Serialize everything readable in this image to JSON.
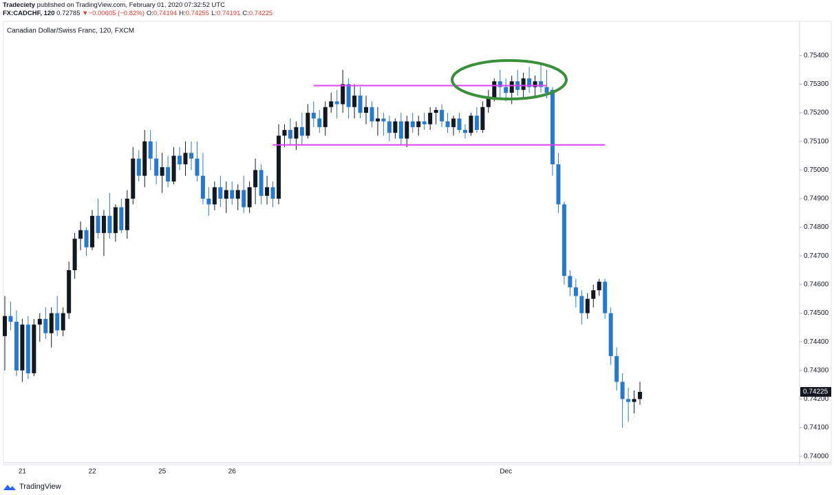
{
  "header": {
    "publisher": "Tradeciety",
    "published": "published on TradingView.com, February 01, 2020 07:32:52 UTC",
    "symbol": "FX:CADCHF, 120",
    "price": "0.72785",
    "arrow": "▼",
    "change": "−0.00605 (−0.82%)",
    "ohlc": [
      {
        "label": "O:",
        "value": "0.74194"
      },
      {
        "label": "H:",
        "value": "0.74255"
      },
      {
        "label": "L:",
        "value": "0.74191"
      },
      {
        "label": "C:",
        "value": "0.74225"
      }
    ]
  },
  "footer": {
    "brand": "TradingView"
  },
  "chart_data": {
    "type": "candlestick",
    "title": "Canadian Dollar/Swiss Franc, 120, FXCM",
    "up_color": "#131722",
    "down_color": "#2679d0",
    "ylim": [
      0.7398,
      0.7551
    ],
    "yticks": [
      {
        "value": 0.74,
        "label": "0.74000"
      },
      {
        "value": 0.741,
        "label": "0.74100"
      },
      {
        "value": 0.742,
        "label": "0.74200"
      },
      {
        "value": 0.743,
        "label": "0.74300"
      },
      {
        "value": 0.744,
        "label": "0.74400"
      },
      {
        "value": 0.745,
        "label": "0.74500"
      },
      {
        "value": 0.746,
        "label": "0.74600"
      },
      {
        "value": 0.747,
        "label": "0.74700"
      },
      {
        "value": 0.748,
        "label": "0.74800"
      },
      {
        "value": 0.749,
        "label": "0.74900"
      },
      {
        "value": 0.75,
        "label": "0.75000"
      },
      {
        "value": 0.751,
        "label": "0.75100"
      },
      {
        "value": 0.752,
        "label": "0.75200"
      },
      {
        "value": 0.753,
        "label": "0.75300"
      },
      {
        "value": 0.754,
        "label": "0.75400"
      }
    ],
    "last_price": {
      "value": 0.74225,
      "label": "0.74225"
    },
    "levels": [
      {
        "value": 0.75295,
        "from": 53,
        "to": 93
      },
      {
        "value": 0.75088,
        "from": 46,
        "to": 103
      }
    ],
    "level_color": "#e040fb",
    "categories": [
      null,
      null,
      null,
      "21",
      null,
      null,
      null,
      null,
      null,
      null,
      null,
      null,
      null,
      null,
      null,
      "22",
      null,
      null,
      null,
      null,
      null,
      null,
      null,
      null,
      null,
      null,
      null,
      "25",
      null,
      null,
      null,
      null,
      null,
      null,
      null,
      null,
      null,
      null,
      null,
      "26",
      null,
      null,
      null,
      null,
      null,
      null,
      null,
      null,
      null,
      null,
      null,
      null,
      null,
      null,
      null,
      null,
      null,
      null,
      null,
      null,
      null,
      null,
      null,
      null,
      null,
      null,
      null,
      null,
      null,
      null,
      null,
      null,
      null,
      null,
      null,
      null,
      null,
      null,
      null,
      null,
      null,
      null,
      null,
      null,
      null,
      null,
      "Dec",
      null,
      null,
      null,
      null,
      null,
      null,
      null,
      null,
      null,
      null,
      null,
      null,
      null,
      null,
      null,
      null,
      null,
      null,
      null,
      null,
      null,
      null,
      null
    ],
    "open": [
      0.7442,
      0.7449,
      0.7447,
      0.743,
      0.7446,
      0.7429,
      0.7446,
      0.7448,
      0.7443,
      0.745,
      0.7444,
      0.745,
      0.7465,
      0.7476,
      0.7479,
      0.7473,
      0.7484,
      0.7478,
      0.7484,
      0.7478,
      0.7487,
      0.7479,
      0.749,
      0.7504,
      0.7498,
      0.751,
      0.7504,
      0.7498,
      0.7501,
      0.7496,
      0.7505,
      0.7502,
      0.7506,
      0.7504,
      0.7498,
      0.749,
      0.7488,
      0.7494,
      0.749,
      0.7493,
      0.749,
      0.7493,
      0.7487,
      0.7494,
      0.75,
      0.7491,
      0.7494,
      0.749,
      0.7512,
      0.7514,
      0.7511,
      0.7515,
      0.7512,
      0.752,
      0.7518,
      0.7515,
      0.7522,
      0.7524,
      0.7523,
      0.753,
      0.7522,
      0.7526,
      0.752,
      0.7522,
      0.7517,
      0.7518,
      0.7517,
      0.7513,
      0.7517,
      0.7511,
      0.7517,
      0.7515,
      0.7517,
      0.7516,
      0.752,
      0.7521,
      0.7517,
      0.7515,
      0.7518,
      0.7514,
      0.7513,
      0.7519,
      0.7514,
      0.7522,
      0.7525,
      0.7531,
      0.7529,
      0.7527,
      0.7531,
      0.7528,
      0.7532,
      0.7529,
      0.7531,
      0.7529,
      0.7528,
      0.7502,
      0.7488,
      0.7463,
      0.7459,
      0.7456,
      0.745,
      0.7455,
      0.7458,
      0.7461,
      0.745,
      0.7435,
      0.7426,
      0.742,
      0.7419,
      0.742
    ],
    "high": [
      0.7456,
      0.7454,
      0.7451,
      0.7448,
      0.7449,
      0.7448,
      0.745,
      0.7452,
      0.7452,
      0.7456,
      0.7452,
      0.7468,
      0.7478,
      0.7482,
      0.748,
      0.7486,
      0.749,
      0.7486,
      0.7492,
      0.7488,
      0.749,
      0.7493,
      0.7508,
      0.7507,
      0.7514,
      0.7514,
      0.751,
      0.7506,
      0.7505,
      0.7508,
      0.7508,
      0.751,
      0.751,
      0.751,
      0.7506,
      0.7494,
      0.7496,
      0.7498,
      0.7496,
      0.7496,
      0.7495,
      0.7498,
      0.7496,
      0.7504,
      0.7502,
      0.7498,
      0.7496,
      0.7516,
      0.7516,
      0.7518,
      0.7517,
      0.752,
      0.7523,
      0.7524,
      0.7521,
      0.7524,
      0.7527,
      0.7528,
      0.7535,
      0.7532,
      0.753,
      0.7529,
      0.7526,
      0.7524,
      0.7522,
      0.752,
      0.7519,
      0.7518,
      0.752,
      0.7519,
      0.752,
      0.7519,
      0.752,
      0.7522,
      0.7522,
      0.7523,
      0.752,
      0.7519,
      0.752,
      0.7516,
      0.752,
      0.7522,
      0.7524,
      0.7528,
      0.7532,
      0.7535,
      0.7532,
      0.7533,
      0.7535,
      0.7534,
      0.7536,
      0.7533,
      0.7537,
      0.7535,
      0.7529,
      0.7506,
      0.7489,
      0.7465,
      0.7462,
      0.7458,
      0.7457,
      0.746,
      0.7462,
      0.7462,
      0.7452,
      0.7438,
      0.7429,
      0.7424,
      0.7423,
      0.7426
    ],
    "low": [
      0.743,
      0.7444,
      0.7428,
      0.7426,
      0.7427,
      0.7428,
      0.744,
      0.7441,
      0.7438,
      0.7442,
      0.7442,
      0.7448,
      0.7462,
      0.7472,
      0.747,
      0.7472,
      0.7476,
      0.747,
      0.7476,
      0.7475,
      0.7478,
      0.7476,
      0.7488,
      0.7496,
      0.7494,
      0.75,
      0.7495,
      0.7492,
      0.7494,
      0.7495,
      0.75,
      0.7498,
      0.75,
      0.7496,
      0.7488,
      0.7484,
      0.7486,
      0.7487,
      0.7485,
      0.7488,
      0.7486,
      0.7485,
      0.7485,
      0.7488,
      0.7488,
      0.7488,
      0.7487,
      0.7488,
      0.7508,
      0.7509,
      0.7507,
      0.7509,
      0.7511,
      0.7515,
      0.7513,
      0.7512,
      0.752,
      0.7518,
      0.752,
      0.7518,
      0.7518,
      0.7518,
      0.7516,
      0.7515,
      0.7512,
      0.7512,
      0.751,
      0.7511,
      0.7509,
      0.7508,
      0.7513,
      0.7512,
      0.7514,
      0.7514,
      0.7516,
      0.7515,
      0.7513,
      0.7512,
      0.7513,
      0.7511,
      0.7512,
      0.7513,
      0.7513,
      0.752,
      0.7524,
      0.7525,
      0.7524,
      0.7523,
      0.7526,
      0.7525,
      0.7527,
      0.7525,
      0.7527,
      0.7525,
      0.7498,
      0.7485,
      0.746,
      0.7456,
      0.7452,
      0.7446,
      0.7448,
      0.7452,
      0.7456,
      0.7448,
      0.7432,
      0.7423,
      0.741,
      0.7412,
      0.7415,
      0.7418
    ],
    "close": [
      0.7449,
      0.7447,
      0.743,
      0.7446,
      0.7429,
      0.7446,
      0.7448,
      0.7443,
      0.745,
      0.7444,
      0.745,
      0.7465,
      0.7476,
      0.7479,
      0.7473,
      0.7484,
      0.7478,
      0.7484,
      0.7478,
      0.7487,
      0.7479,
      0.749,
      0.7504,
      0.7498,
      0.751,
      0.7504,
      0.7498,
      0.7501,
      0.7496,
      0.7505,
      0.7502,
      0.7506,
      0.7504,
      0.7498,
      0.749,
      0.7488,
      0.7494,
      0.749,
      0.7493,
      0.749,
      0.7493,
      0.7487,
      0.7494,
      0.75,
      0.7491,
      0.7494,
      0.749,
      0.7512,
      0.7514,
      0.7511,
      0.7515,
      0.7512,
      0.752,
      0.7518,
      0.7515,
      0.7522,
      0.7524,
      0.7523,
      0.753,
      0.7522,
      0.7526,
      0.752,
      0.7522,
      0.7517,
      0.7518,
      0.7517,
      0.7513,
      0.7517,
      0.7511,
      0.7517,
      0.7515,
      0.7517,
      0.7516,
      0.752,
      0.7521,
      0.7517,
      0.7515,
      0.7518,
      0.7514,
      0.7513,
      0.7519,
      0.7514,
      0.7522,
      0.7525,
      0.7531,
      0.7529,
      0.7527,
      0.7531,
      0.7528,
      0.7532,
      0.7529,
      0.7531,
      0.7529,
      0.7527,
      0.7502,
      0.7488,
      0.7463,
      0.7459,
      0.7456,
      0.745,
      0.7455,
      0.7458,
      0.7461,
      0.745,
      0.7435,
      0.7426,
      0.742,
      0.7419,
      0.742,
      0.74225
    ]
  }
}
